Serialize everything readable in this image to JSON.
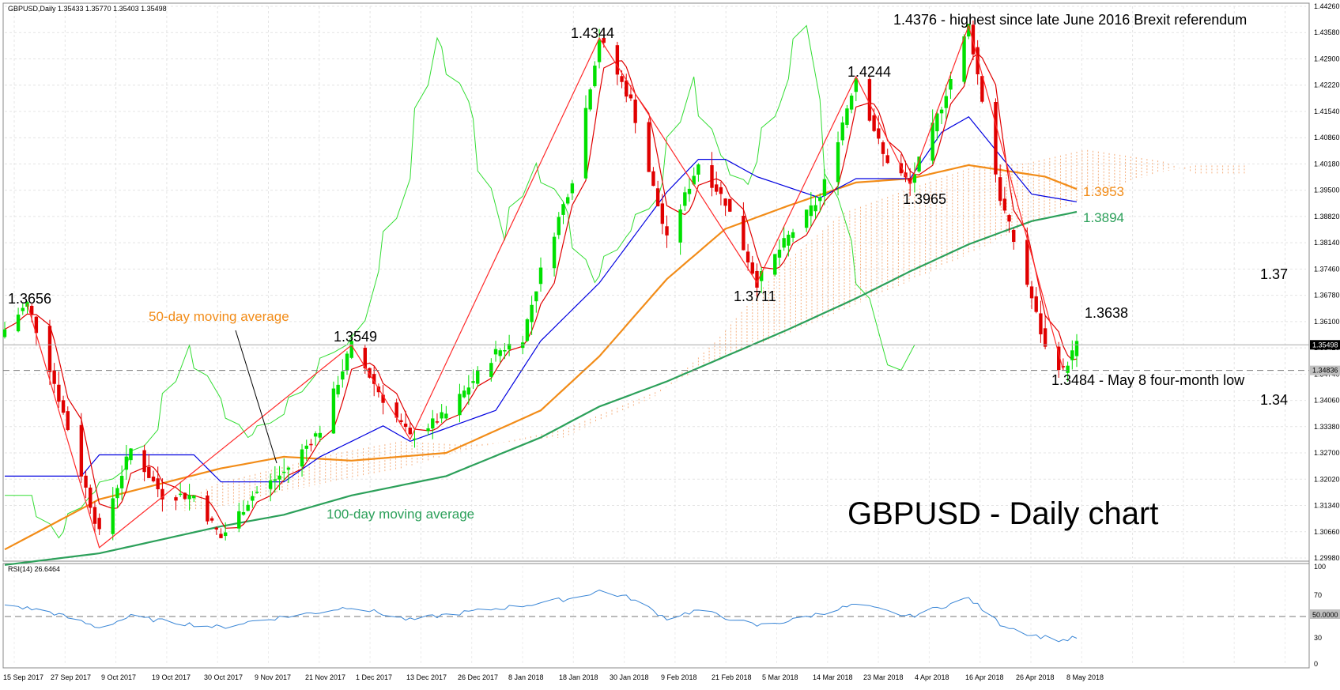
{
  "header": {
    "symbol_line": "GBPUSD,Daily  1.35433 1.35770 1.35403 1.35498"
  },
  "chart_title": "GBPUSD - Daily chart",
  "colors": {
    "bull": "#00e000",
    "bear": "#e00000",
    "tenkan": "#e00000",
    "kijun": "#0000e0",
    "chikou": "#33dd33",
    "ma50": "#f28c18",
    "ma100": "#2ca05a",
    "cloud": "#f4a36b",
    "rsi": "#3a86d6"
  },
  "annotations": {
    "ma50_label": "50-day moving average",
    "ma100_label": "100-day moving average",
    "ma50_value": "1.3953",
    "ma100_value": "1.3894",
    "level_137": "1.37",
    "level_134": "1.34",
    "peak_13656": "1.3656",
    "peak_13549": "1.3549",
    "peak_14344": "1.4344",
    "low_13711": "1.3711",
    "peak_14244": "1.4244",
    "low_13965": "1.3965",
    "peak_14376": "1.4376 - highest since late June 2016 Brexit referendum",
    "level_13638": "1.3638",
    "low_13484": "1.3484 - May 8 four-month low"
  },
  "price_axis": {
    "ticks": [
      "1.44260",
      "1.43580",
      "1.42900",
      "1.42220",
      "1.41540",
      "1.40860",
      "1.40180",
      "1.39500",
      "1.38820",
      "1.38140",
      "1.37460",
      "1.36780",
      "1.36100",
      "1.35420",
      "1.34740",
      "1.34060",
      "1.33380",
      "1.32700",
      "1.32020",
      "1.31340",
      "1.30660",
      "1.29980"
    ],
    "current_price": "1.35498",
    "dashed_price": "1.34836"
  },
  "rsi_panel": {
    "label": "RSI(14) 26.6464",
    "ticks": [
      "100",
      "70",
      "50.0000",
      "30",
      "0"
    ]
  },
  "date_axis": {
    "labels": [
      "15 Sep 2017",
      "27 Sep 2017",
      "9 Oct 2017",
      "19 Oct 2017",
      "30 Oct 2017",
      "9 Nov 2017",
      "21 Nov 2017",
      "1 Dec 2017",
      "13 Dec 2017",
      "26 Dec 2017",
      "8 Jan 2018",
      "18 Jan 2018",
      "30 Jan 2018",
      "9 Feb 2018",
      "21 Feb 2018",
      "5 Mar 2018",
      "14 Mar 2018",
      "23 Mar 2018",
      "4 Apr 2018",
      "16 Apr 2018",
      "26 Apr 2018",
      "8 May 2018"
    ]
  },
  "chart_data": {
    "type": "candlestick",
    "title": "GBPUSD - Daily chart",
    "x_start": "15 Sep 2017",
    "x_end": "11 May 2018",
    "ylim": [
      1.2998,
      1.4426
    ],
    "close_waypoints": [
      [
        "2017-09-15",
        1.359
      ],
      [
        "2017-09-20",
        1.3656
      ],
      [
        "2017-09-25",
        1.349
      ],
      [
        "2017-10-06",
        1.306
      ],
      [
        "2017-10-13",
        1.328
      ],
      [
        "2017-10-20",
        1.316
      ],
      [
        "2017-10-27",
        1.316
      ],
      [
        "2017-11-02",
        1.305
      ],
      [
        "2017-11-09",
        1.316
      ],
      [
        "2017-11-16",
        1.322
      ],
      [
        "2017-11-24",
        1.333
      ],
      [
        "2017-12-01",
        1.3549
      ],
      [
        "2017-12-08",
        1.341
      ],
      [
        "2017-12-14",
        1.331
      ],
      [
        "2017-12-22",
        1.337
      ],
      [
        "2018-01-02",
        1.353
      ],
      [
        "2018-01-08",
        1.357
      ],
      [
        "2018-01-12",
        1.374
      ],
      [
        "2018-01-19",
        1.398
      ],
      [
        "2018-01-25",
        1.4344
      ],
      [
        "2018-02-01",
        1.418
      ],
      [
        "2018-02-09",
        1.382
      ],
      [
        "2018-02-16",
        1.402
      ],
      [
        "2018-02-22",
        1.392
      ],
      [
        "2018-03-01",
        1.3711
      ],
      [
        "2018-03-08",
        1.383
      ],
      [
        "2018-03-15",
        1.393
      ],
      [
        "2018-03-23",
        1.4244
      ],
      [
        "2018-03-29",
        1.404
      ],
      [
        "2018-04-04",
        1.3965
      ],
      [
        "2018-04-11",
        1.417
      ],
      [
        "2018-04-17",
        1.4376
      ],
      [
        "2018-04-24",
        1.393
      ],
      [
        "2018-05-01",
        1.367
      ],
      [
        "2018-05-04",
        1.354
      ],
      [
        "2018-05-08",
        1.3484
      ],
      [
        "2018-05-11",
        1.35498
      ]
    ],
    "zigzag": [
      [
        "2017-09-20",
        1.3656
      ],
      [
        "2017-10-06",
        1.3025
      ],
      [
        "2017-12-01",
        1.3549
      ],
      [
        "2017-12-14",
        1.3305
      ],
      [
        "2018-01-25",
        1.4344
      ],
      [
        "2018-03-01",
        1.3711
      ],
      [
        "2018-03-23",
        1.4244
      ],
      [
        "2018-04-04",
        1.3965
      ],
      [
        "2018-04-17",
        1.4376
      ],
      [
        "2018-05-08",
        1.3484
      ]
    ],
    "ma50_waypoints": [
      [
        "2017-09-15",
        1.302
      ],
      [
        "2017-10-06",
        1.315
      ],
      [
        "2017-11-02",
        1.323
      ],
      [
        "2017-11-16",
        1.326
      ],
      [
        "2017-12-01",
        1.325
      ],
      [
        "2017-12-22",
        1.327
      ],
      [
        "2018-01-12",
        1.338
      ],
      [
        "2018-01-25",
        1.352
      ],
      [
        "2018-02-09",
        1.372
      ],
      [
        "2018-02-22",
        1.385
      ],
      [
        "2018-03-08",
        1.391
      ],
      [
        "2018-03-23",
        1.397
      ],
      [
        "2018-04-04",
        1.398
      ],
      [
        "2018-04-17",
        1.4015
      ],
      [
        "2018-05-04",
        1.3985
      ],
      [
        "2018-05-11",
        1.3953
      ]
    ],
    "ma100_waypoints": [
      [
        "2017-09-15",
        1.298
      ],
      [
        "2017-10-06",
        1.301
      ],
      [
        "2017-11-02",
        1.308
      ],
      [
        "2017-11-16",
        1.311
      ],
      [
        "2017-12-01",
        1.316
      ],
      [
        "2017-12-22",
        1.321
      ],
      [
        "2018-01-12",
        1.331
      ],
      [
        "2018-01-25",
        1.339
      ],
      [
        "2018-02-09",
        1.3455
      ],
      [
        "2018-02-22",
        1.352
      ],
      [
        "2018-03-08",
        1.359
      ],
      [
        "2018-03-23",
        1.367
      ],
      [
        "2018-04-04",
        1.374
      ],
      [
        "2018-04-17",
        1.381
      ],
      [
        "2018-05-01",
        1.387
      ],
      [
        "2018-05-11",
        1.3894
      ]
    ],
    "kijun_waypoints": [
      [
        "2017-09-15",
        1.321
      ],
      [
        "2017-10-02",
        1.321
      ],
      [
        "2017-10-06",
        1.3265
      ],
      [
        "2017-10-27",
        1.3265
      ],
      [
        "2017-11-02",
        1.3195
      ],
      [
        "2017-11-16",
        1.3195
      ],
      [
        "2017-11-24",
        1.326
      ],
      [
        "2017-12-08",
        1.334
      ],
      [
        "2017-12-14",
        1.33
      ],
      [
        "2018-01-02",
        1.338
      ],
      [
        "2018-01-12",
        1.356
      ],
      [
        "2018-01-25",
        1.371
      ],
      [
        "2018-02-09",
        1.3945
      ],
      [
        "2018-02-16",
        1.403
      ],
      [
        "2018-02-22",
        1.403
      ],
      [
        "2018-03-01",
        1.3985
      ],
      [
        "2018-03-15",
        1.393
      ],
      [
        "2018-03-23",
        1.398
      ],
      [
        "2018-04-04",
        1.398
      ],
      [
        "2018-04-11",
        1.41
      ],
      [
        "2018-04-17",
        1.414
      ],
      [
        "2018-04-24",
        1.404
      ],
      [
        "2018-05-01",
        1.394
      ],
      [
        "2018-05-11",
        1.392
      ]
    ],
    "annotations": [
      {
        "text": "1.3656",
        "date": "2017-09-20",
        "price": 1.3656
      },
      {
        "text": "1.3549",
        "date": "2017-12-01",
        "price": 1.3549
      },
      {
        "text": "1.4344",
        "date": "2018-01-25",
        "price": 1.4344
      },
      {
        "text": "1.3711",
        "date": "2018-03-01",
        "price": 1.3711
      },
      {
        "text": "1.4244",
        "date": "2018-03-23",
        "price": 1.4244
      },
      {
        "text": "1.3965",
        "date": "2018-04-04",
        "price": 1.3965
      },
      {
        "text": "1.4376 - highest since late June 2016 Brexit referendum",
        "date": "2018-04-17",
        "price": 1.4376
      },
      {
        "text": "1.3484 - May 8 four-month low",
        "date": "2018-05-08",
        "price": 1.3484
      }
    ],
    "rsi": {
      "ylim": [
        0,
        100
      ],
      "last": 26.6464,
      "waypoints": [
        [
          "2017-09-15",
          63
        ],
        [
          "2017-09-25",
          55
        ],
        [
          "2017-10-06",
          38
        ],
        [
          "2017-10-13",
          50
        ],
        [
          "2017-10-20",
          45
        ],
        [
          "2017-11-02",
          38
        ],
        [
          "2017-11-09",
          45
        ],
        [
          "2017-11-24",
          55
        ],
        [
          "2017-12-01",
          61
        ],
        [
          "2017-12-14",
          46
        ],
        [
          "2017-12-22",
          52
        ],
        [
          "2018-01-08",
          62
        ],
        [
          "2018-01-19",
          70
        ],
        [
          "2018-01-25",
          78
        ],
        [
          "2018-02-01",
          70
        ],
        [
          "2018-02-09",
          48
        ],
        [
          "2018-02-16",
          57
        ],
        [
          "2018-03-01",
          40
        ],
        [
          "2018-03-08",
          45
        ],
        [
          "2018-03-23",
          63
        ],
        [
          "2018-04-04",
          50
        ],
        [
          "2018-04-17",
          70
        ],
        [
          "2018-04-24",
          42
        ],
        [
          "2018-05-01",
          30
        ],
        [
          "2018-05-08",
          24
        ],
        [
          "2018-05-11",
          27
        ]
      ]
    }
  }
}
